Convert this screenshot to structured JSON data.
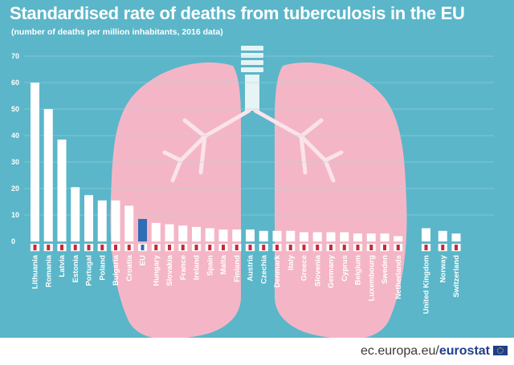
{
  "title": "Standardised rate of deaths from tuberculosis in the EU",
  "subtitle": "(number of deaths per million inhabitants, 2016 data)",
  "source": {
    "prefix": "ec.europa.eu/",
    "brand": "eurostat"
  },
  "colors": {
    "background": "#5bb6c9",
    "bar": "#ffffff",
    "bar_highlight": "#2f6db5",
    "lungs": "#f4b6c6",
    "grid": "#a6d8e2",
    "text": "#ffffff"
  },
  "chart_data": {
    "type": "bar",
    "title": "Standardised rate of deaths from tuberculosis in the EU",
    "subtitle": "(number of deaths per million inhabitants, 2016 data)",
    "ylim": [
      0,
      70
    ],
    "yticks": [
      "0",
      "10",
      "20",
      "30",
      "40",
      "50",
      "60",
      "70"
    ],
    "ytick_values": [
      0,
      10,
      20,
      30,
      40,
      50,
      60,
      70
    ],
    "grid": true,
    "highlight_category": "EU",
    "categories": [
      "Lithuania",
      "Romania",
      "Latvia",
      "Estonia",
      "Portugal",
      "Poland",
      "Bulgaria",
      "Croatia",
      "EU",
      "Hungary",
      "Slovakia",
      "France",
      "Ireland",
      "Spain",
      "Malta",
      "Finland",
      "Austria",
      "Czechia",
      "Denmark",
      "Italy",
      "Greece",
      "Slovenia",
      "Germany",
      "Cyprus",
      "Belgium",
      "Luxembourg",
      "Sweden",
      "Netherlands",
      "United Kingdom",
      "Norway",
      "Switzerland"
    ],
    "values": [
      60,
      50,
      38.5,
      20.5,
      17.5,
      15.5,
      15.5,
      13.5,
      8.5,
      7,
      6.5,
      6,
      5.5,
      5,
      4.5,
      4.5,
      4.5,
      4,
      4,
      4,
      3.5,
      3.5,
      3.5,
      3.5,
      3,
      3,
      3,
      2,
      5,
      4,
      3
    ]
  }
}
